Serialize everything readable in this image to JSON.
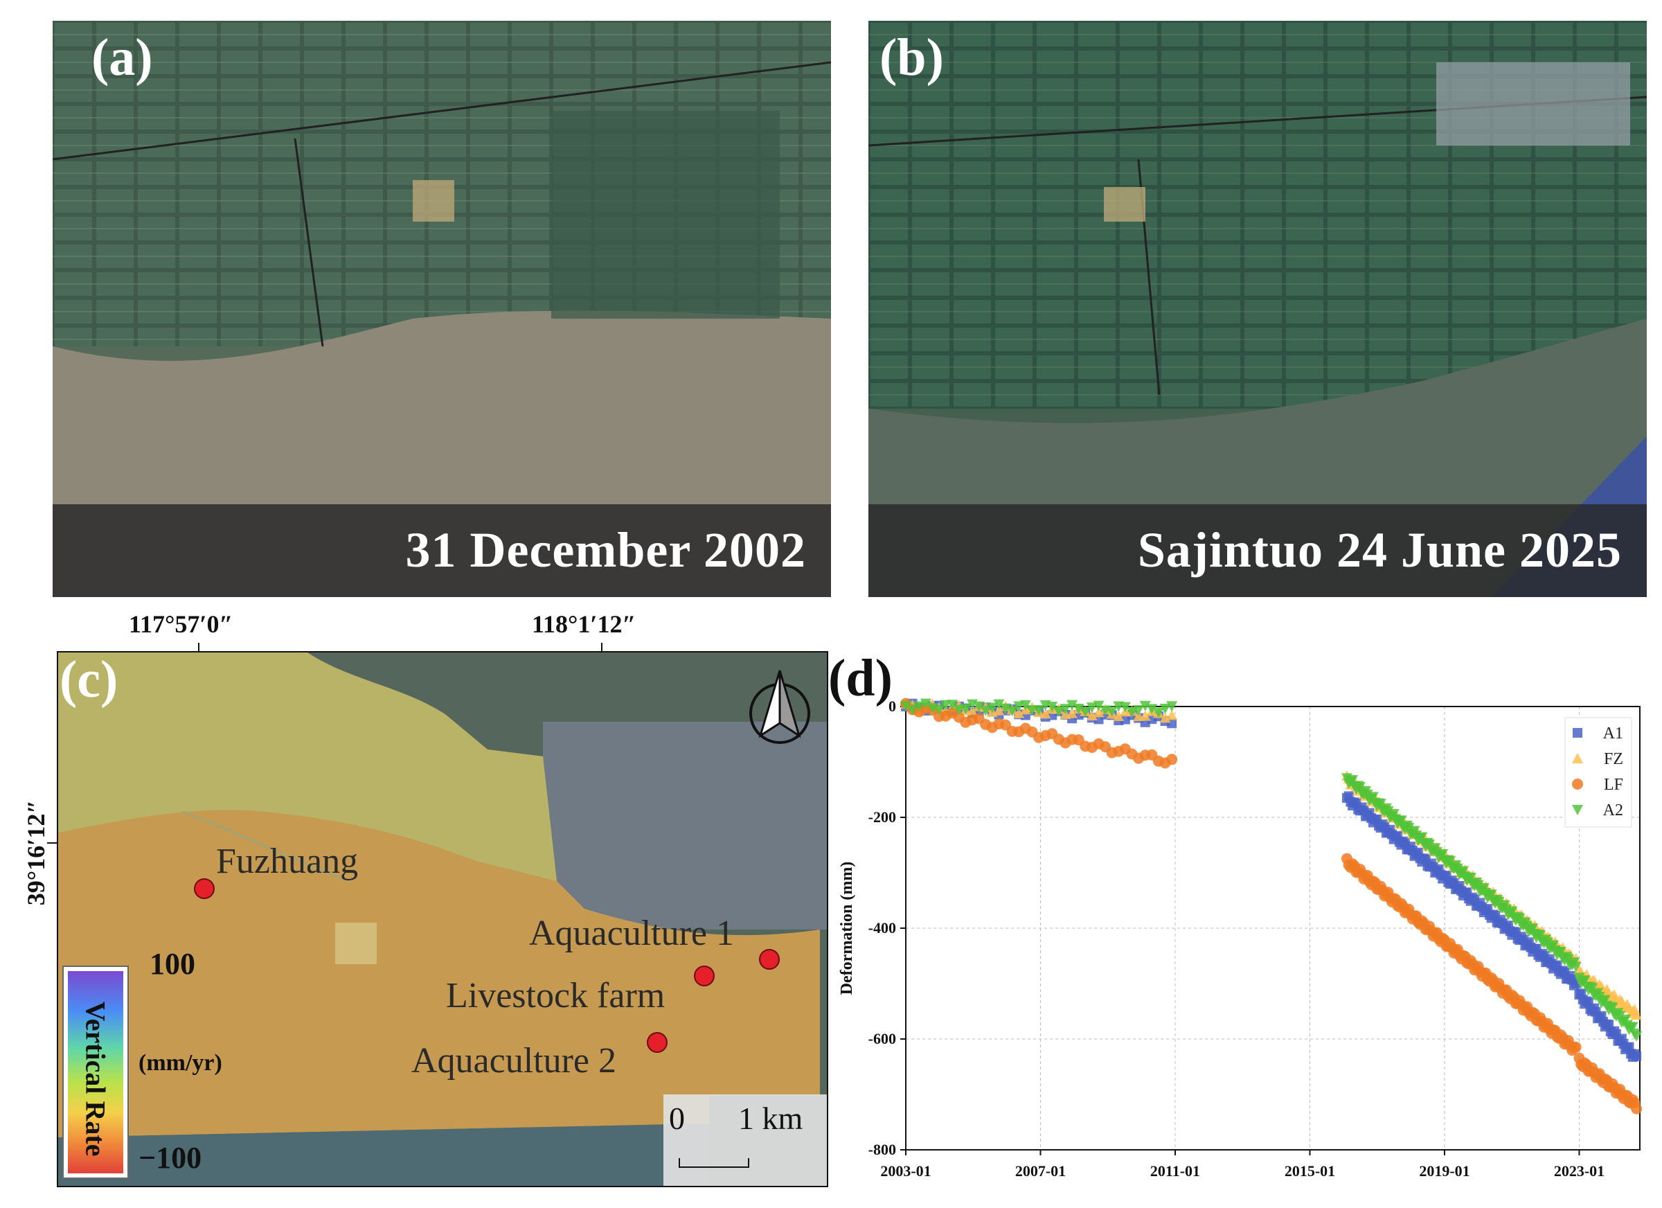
{
  "panels": {
    "a": {
      "letter": "(a)",
      "caption": "31 December 2002"
    },
    "b": {
      "letter": "(b)",
      "caption": "Sajintuo 24 June 2025"
    },
    "c": {
      "letter": "(c)",
      "lon_labels": [
        "117°57′0″",
        "118°1′12″"
      ],
      "lat_label": "39°16′12″",
      "places": [
        "Fuzhuang",
        "Aquaculture 1",
        "Livestock farm",
        "Aquaculture 2"
      ],
      "colorbar": {
        "title": "Vertical Rate",
        "max": "100",
        "min": "−100",
        "unit": "(mm/yr)"
      },
      "scale": {
        "zero": "0",
        "one": "1 km"
      },
      "north_arrow_icon": "north-arrow-icon"
    },
    "d": {
      "letter": "(d)"
    }
  },
  "colors": {
    "A1": "#4a63c8",
    "FZ": "#ffc04d",
    "LF": "#f07a22",
    "A2": "#4fc43a"
  },
  "chart_data": {
    "type": "scatter",
    "ylabel": "Deformation (mm)",
    "xlabel": "",
    "ylim": [
      -800,
      0
    ],
    "yticks": [
      0,
      -200,
      -400,
      -600,
      -800
    ],
    "xticks": [
      "2003-01",
      "2007-01",
      "2011-01",
      "2015-01",
      "2019-01",
      "2023-01"
    ],
    "xlim": [
      2003.0,
      2024.8
    ],
    "grid": true,
    "legend_position": "top-right",
    "series": [
      {
        "name": "A1",
        "marker": "square",
        "segments": [
          {
            "x_start": 2003.0,
            "x_end": 2010.9,
            "y_start": 0,
            "y_end": -25
          },
          {
            "x_start": 2016.1,
            "x_end": 2022.9,
            "y_start": -165,
            "y_end": -500
          },
          {
            "x_start": 2023.0,
            "x_end": 2024.7,
            "y_start": -520,
            "y_end": -635
          }
        ]
      },
      {
        "name": "FZ",
        "marker": "triangle-up",
        "segments": [
          {
            "x_start": 2003.0,
            "x_end": 2010.9,
            "y_start": 0,
            "y_end": -15
          },
          {
            "x_start": 2016.1,
            "x_end": 2022.9,
            "y_start": -130,
            "y_end": -460
          },
          {
            "x_start": 2023.0,
            "x_end": 2024.7,
            "y_start": -480,
            "y_end": -555
          }
        ]
      },
      {
        "name": "LF",
        "marker": "circle",
        "segments": [
          {
            "x_start": 2003.0,
            "x_end": 2010.9,
            "y_start": 0,
            "y_end": -100
          },
          {
            "x_start": 2016.1,
            "x_end": 2022.9,
            "y_start": -280,
            "y_end": -620
          },
          {
            "x_start": 2023.0,
            "x_end": 2024.7,
            "y_start": -640,
            "y_end": -720
          }
        ]
      },
      {
        "name": "A2",
        "marker": "triangle-down",
        "segments": [
          {
            "x_start": 2003.0,
            "x_end": 2010.9,
            "y_start": 0,
            "y_end": -5
          },
          {
            "x_start": 2016.1,
            "x_end": 2022.9,
            "y_start": -130,
            "y_end": -470
          },
          {
            "x_start": 2023.0,
            "x_end": 2024.7,
            "y_start": -490,
            "y_end": -590
          }
        ]
      }
    ]
  }
}
